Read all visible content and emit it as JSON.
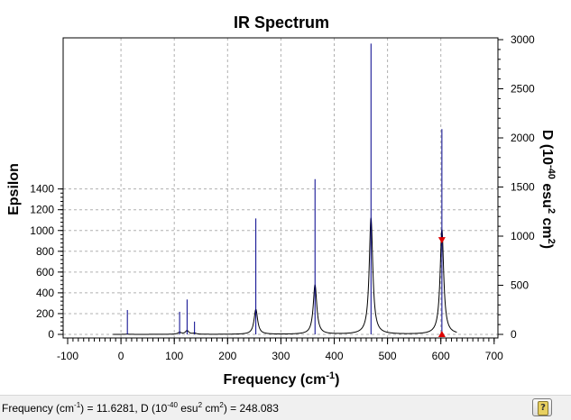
{
  "chart_data": {
    "type": "line",
    "title": "IR Spectrum",
    "xlabel": "Frequency (cm",
    "xlabel_sup": "-1",
    "xlabel_end": ")",
    "ylabel_left": "Epsilon",
    "ylabel_right_parts": [
      "D (10",
      "-40",
      " esu",
      "2",
      " cm",
      "2",
      ")"
    ],
    "xlim": [
      -100,
      700
    ],
    "ylim_left": [
      0,
      1400
    ],
    "ylim_right": [
      0,
      3000
    ],
    "x_ticks": [
      -100,
      0,
      100,
      200,
      300,
      400,
      500,
      600,
      700
    ],
    "y_left_ticks": [
      0,
      200,
      400,
      600,
      800,
      1000,
      1200,
      1400
    ],
    "y_right_ticks": [
      0,
      500,
      1000,
      1500,
      2000,
      2500,
      3000
    ],
    "grid": true,
    "spectrum_color": "#000000",
    "sticks_color": "#00008b",
    "marker_color": "#dd0000",
    "sticks": [
      {
        "x": 12,
        "d": 248
      },
      {
        "x": 110,
        "d": 230
      },
      {
        "x": 124,
        "d": 355
      },
      {
        "x": 138,
        "d": 130
      },
      {
        "x": 253,
        "d": 1180
      },
      {
        "x": 364,
        "d": 1580
      },
      {
        "x": 469,
        "d": 2960
      },
      {
        "x": 602,
        "d": 2090
      }
    ],
    "peaks": [
      {
        "x": 253,
        "width": 4,
        "height": 240
      },
      {
        "x": 364,
        "width": 4,
        "height": 475
      },
      {
        "x": 469,
        "width": 4,
        "height": 1120
      },
      {
        "x": 602,
        "width": 4,
        "height": 1010
      }
    ],
    "small_peaks": [
      {
        "x": 12,
        "width": 4,
        "height": 2
      },
      {
        "x": 110,
        "width": 4,
        "height": 18
      },
      {
        "x": 124,
        "width": 4,
        "height": 35
      },
      {
        "x": 138,
        "width": 4,
        "height": 10
      }
    ],
    "spectrum_range": [
      -15,
      630
    ],
    "marker": {
      "x": 602,
      "epsilon": 910
    }
  },
  "status": {
    "text_parts": [
      "Frequency (cm",
      "-1",
      ") = 11.6281, D (10",
      "-40",
      " esu",
      "2",
      " cm",
      "2",
      ") = 248.083"
    ]
  },
  "help_button": {
    "icon": "help-book-icon",
    "glyph": "?"
  }
}
